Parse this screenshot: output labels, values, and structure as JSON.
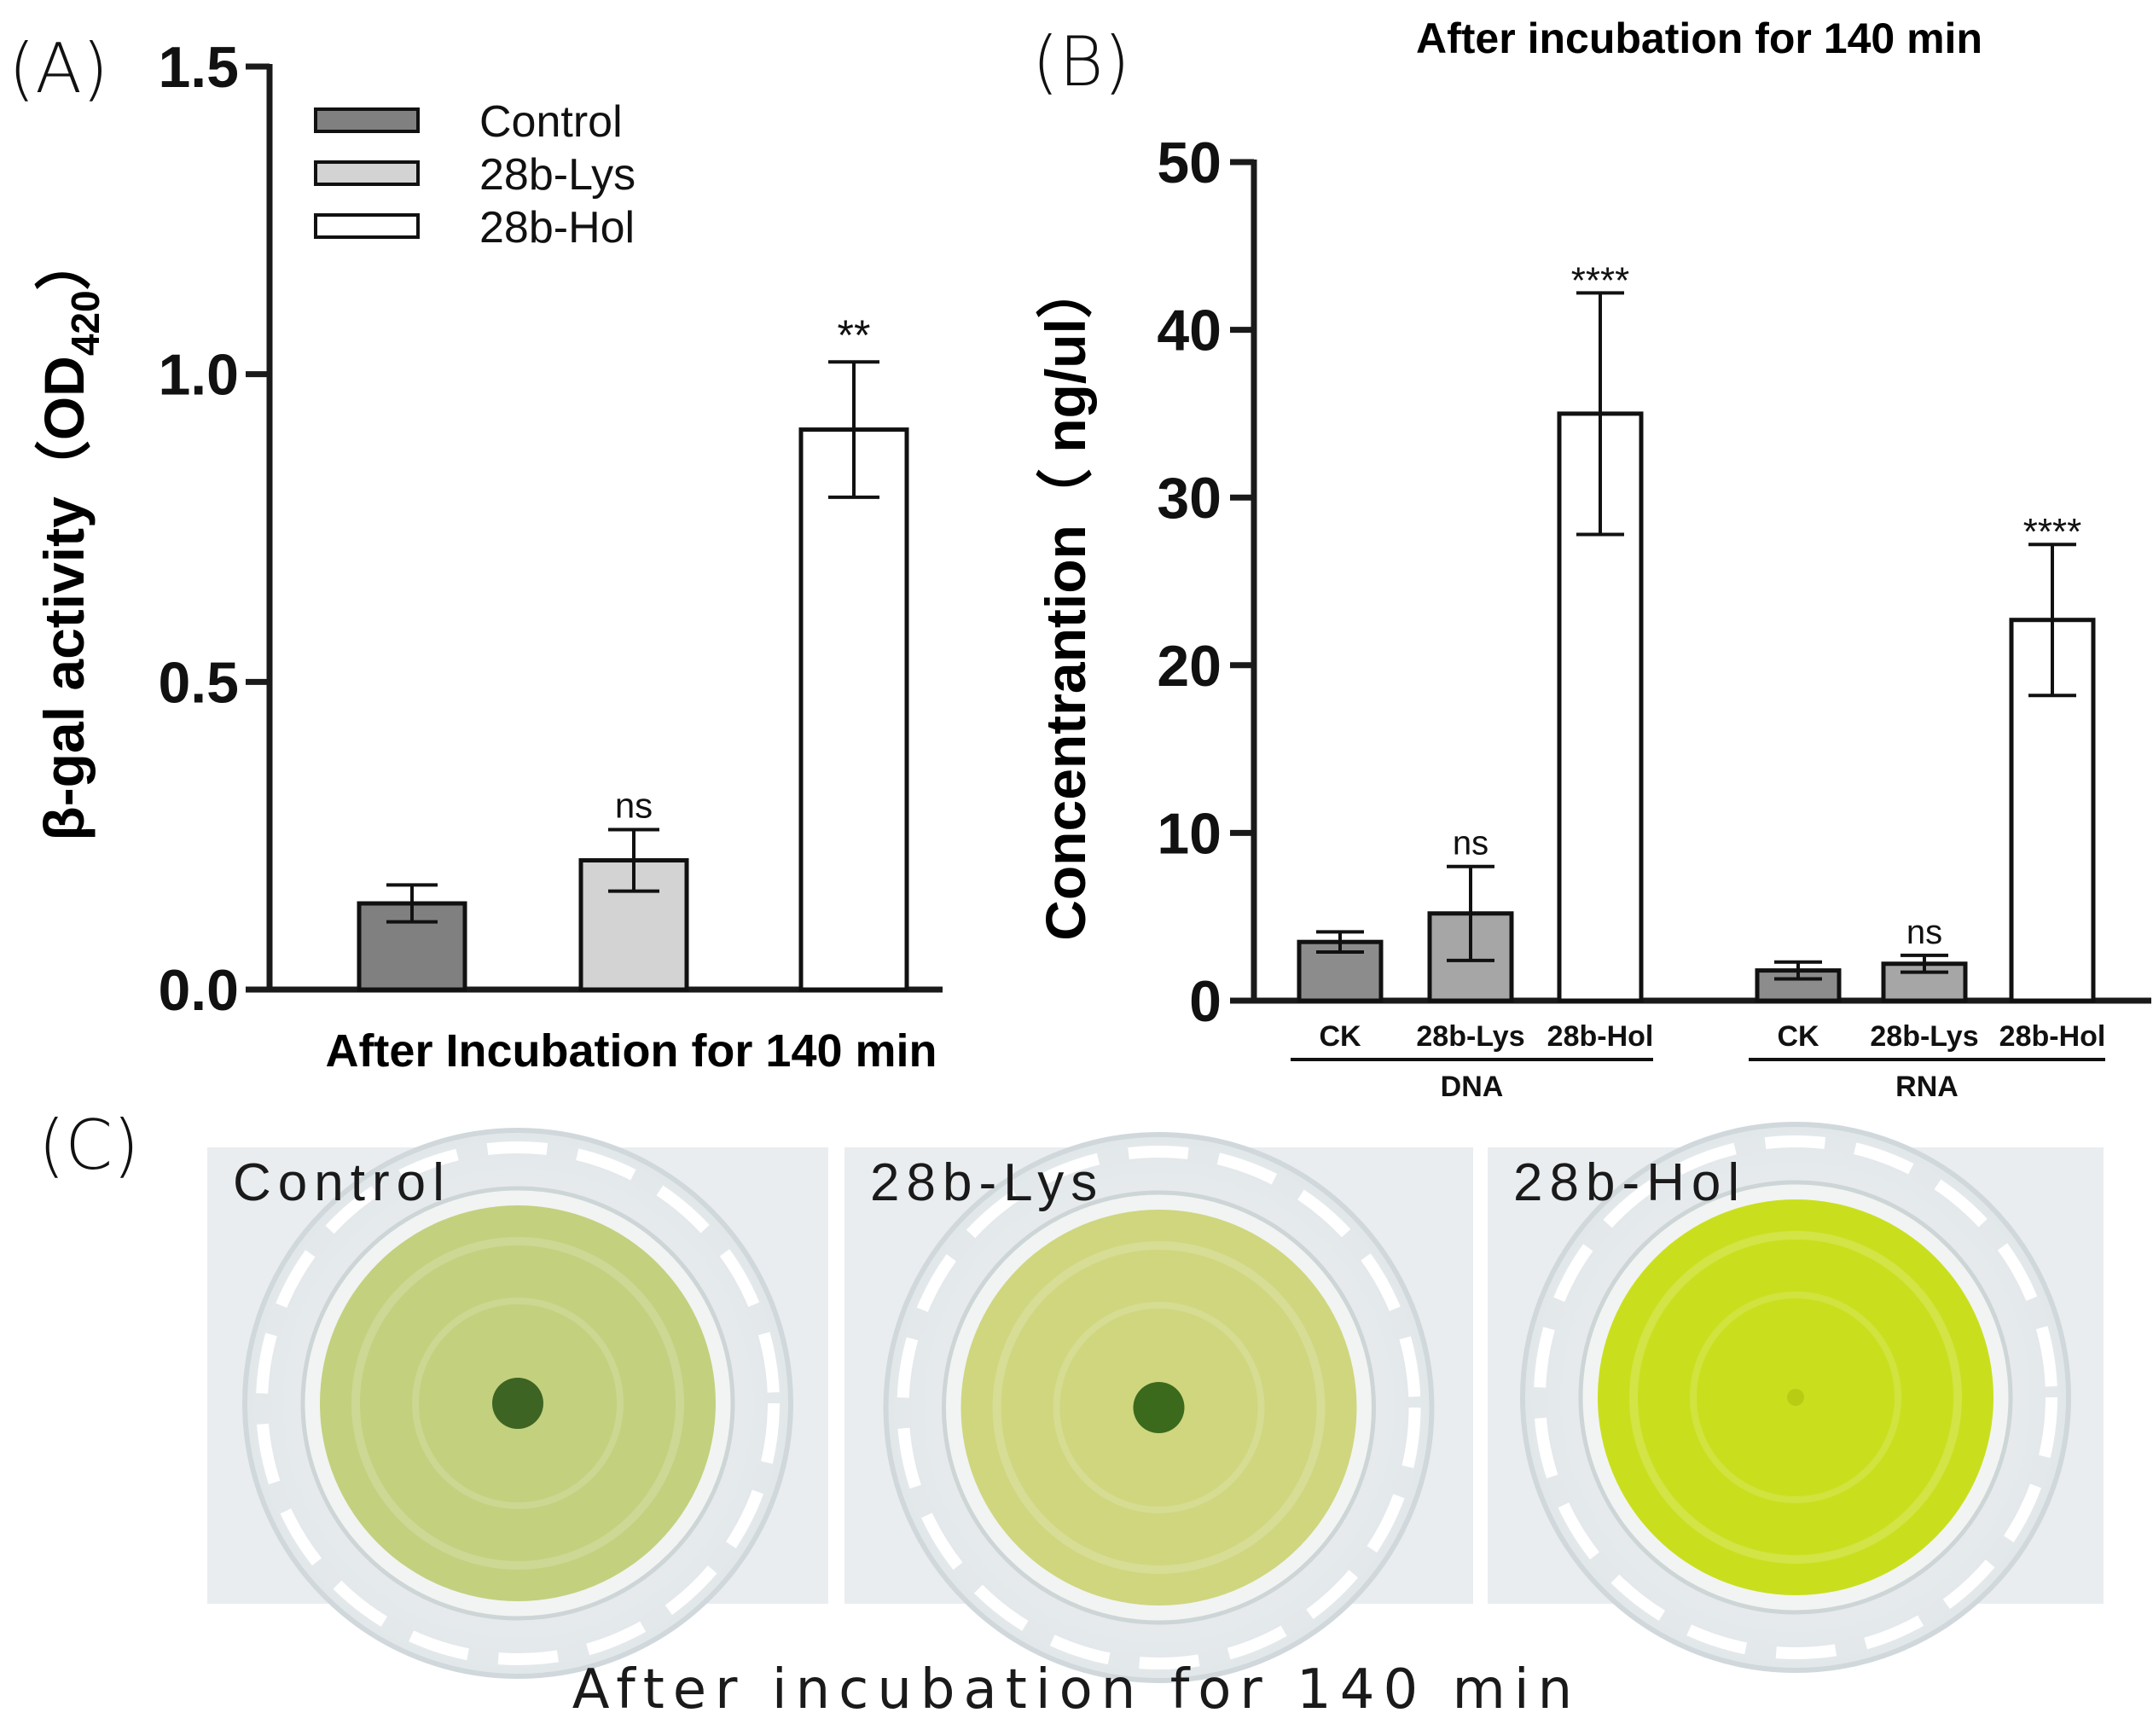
{
  "panels": {
    "a_label": "(A)",
    "b_label": "(B)",
    "c_label": "(C)"
  },
  "chart_data": [
    {
      "type": "bar",
      "title": "",
      "ylabel": "β-gal activity（OD420）",
      "ylabel_main": "β-gal activity（OD",
      "ylabel_sub": "420",
      "ylabel_close": "）",
      "xlabel": "After Incubation for 140 min",
      "ylim": [
        0,
        1.5
      ],
      "yticks": [
        0.0,
        0.5,
        1.0,
        1.5
      ],
      "ytick_labels": [
        "0.0",
        "0.5",
        "1.0",
        "1.5"
      ],
      "categories": [
        "Control",
        "28b-Lys",
        "28b-Hol"
      ],
      "values": [
        0.14,
        0.21,
        0.91
      ],
      "errors": [
        0.03,
        0.05,
        0.11
      ],
      "significance": [
        "",
        "ns",
        "**"
      ],
      "legend": [
        "Control",
        "28b-Lys",
        "28b-Hol"
      ],
      "legend_position": "top-left",
      "colors": [
        "#808080",
        "#d3d3d3",
        "#ffffff"
      ]
    },
    {
      "type": "bar",
      "title": "After incubation for 140 min",
      "ylabel": "Concentrantion（ ng/ul）",
      "xlabel": "",
      "ylim": [
        0,
        50
      ],
      "yticks": [
        0,
        10,
        20,
        30,
        40,
        50
      ],
      "ytick_labels": [
        "0",
        "10",
        "20",
        "30",
        "40",
        "50"
      ],
      "groups": [
        "DNA",
        "RNA"
      ],
      "categories": [
        "CK",
        "28b-Lys",
        "28b-Hol"
      ],
      "series": [
        {
          "name": "DNA",
          "values": [
            3.5,
            5.2,
            35.0
          ],
          "errors": [
            0.6,
            2.8,
            7.2
          ],
          "significance": [
            "",
            "ns",
            "****"
          ]
        },
        {
          "name": "RNA",
          "values": [
            1.8,
            2.2,
            22.7
          ],
          "errors": [
            0.5,
            0.5,
            4.5
          ],
          "significance": [
            "",
            "ns",
            "****"
          ]
        }
      ],
      "colors": [
        "#8c8c8c",
        "#a6a6a6",
        "#ffffff"
      ]
    }
  ],
  "photos": {
    "items": [
      {
        "label": "Control",
        "liquid": "#c3d07e",
        "center": "#3d6422"
      },
      {
        "label": "28b-Lys",
        "liquid": "#cfd67e",
        "center": "#3c6a1c"
      },
      {
        "label": "28b-Hol",
        "liquid": "#c9df1e",
        "center": "#b8cc14"
      }
    ],
    "caption": "After incubation for 140 min"
  }
}
